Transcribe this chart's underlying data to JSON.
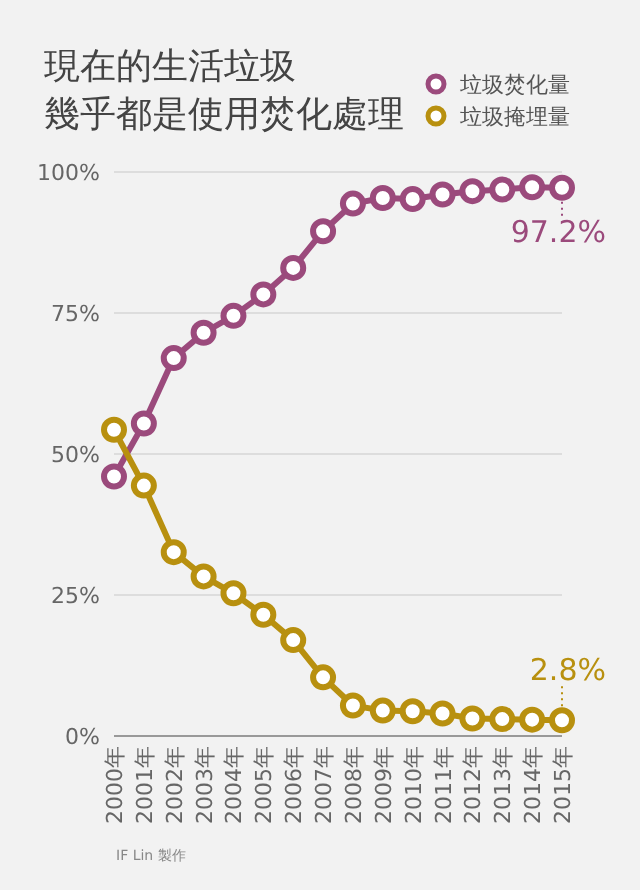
{
  "chart_data": {
    "type": "line",
    "title": "現在的生活垃圾",
    "subtitle": "幾乎都是使用焚化處理",
    "categories": [
      "2000年",
      "2001年",
      "2002年",
      "2003年",
      "2004年",
      "2005年",
      "2006年",
      "2007年",
      "2008年",
      "2009年",
      "2010年",
      "2011年",
      "2012年",
      "2013年",
      "2014年",
      "2015年"
    ],
    "series": [
      {
        "name": "垃圾焚化量",
        "color": "#9b4a7c",
        "values": [
          46.0,
          55.4,
          67.0,
          71.5,
          74.5,
          78.3,
          83.0,
          89.5,
          94.4,
          95.4,
          95.2,
          96.0,
          96.6,
          96.9,
          97.3,
          97.2
        ],
        "value_labels": [
          null,
          null,
          null,
          null,
          null,
          null,
          null,
          null,
          null,
          null,
          null,
          null,
          null,
          null,
          null,
          "97.2%"
        ]
      },
      {
        "name": "垃圾掩埋量",
        "color": "#b8900f",
        "values": [
          54.3,
          44.4,
          32.6,
          28.3,
          25.3,
          21.5,
          17.0,
          10.4,
          5.4,
          4.5,
          4.4,
          4.0,
          3.1,
          3.0,
          2.9,
          2.8
        ],
        "value_labels": [
          null,
          null,
          null,
          null,
          null,
          null,
          null,
          null,
          null,
          null,
          null,
          null,
          null,
          null,
          null,
          "2.8%"
        ]
      }
    ],
    "ylim": [
      0,
      100
    ],
    "yticks": [
      {
        "value": 0,
        "label": "0%"
      },
      {
        "value": 25,
        "label": "25%"
      },
      {
        "value": 50,
        "label": "50%"
      },
      {
        "value": 75,
        "label": "75%"
      },
      {
        "value": 100,
        "label": "100%"
      }
    ],
    "grid": "y",
    "legend": "top right",
    "marker": "circle",
    "line_style": "solid",
    "annotations": [
      "IF Lin 製作"
    ]
  }
}
